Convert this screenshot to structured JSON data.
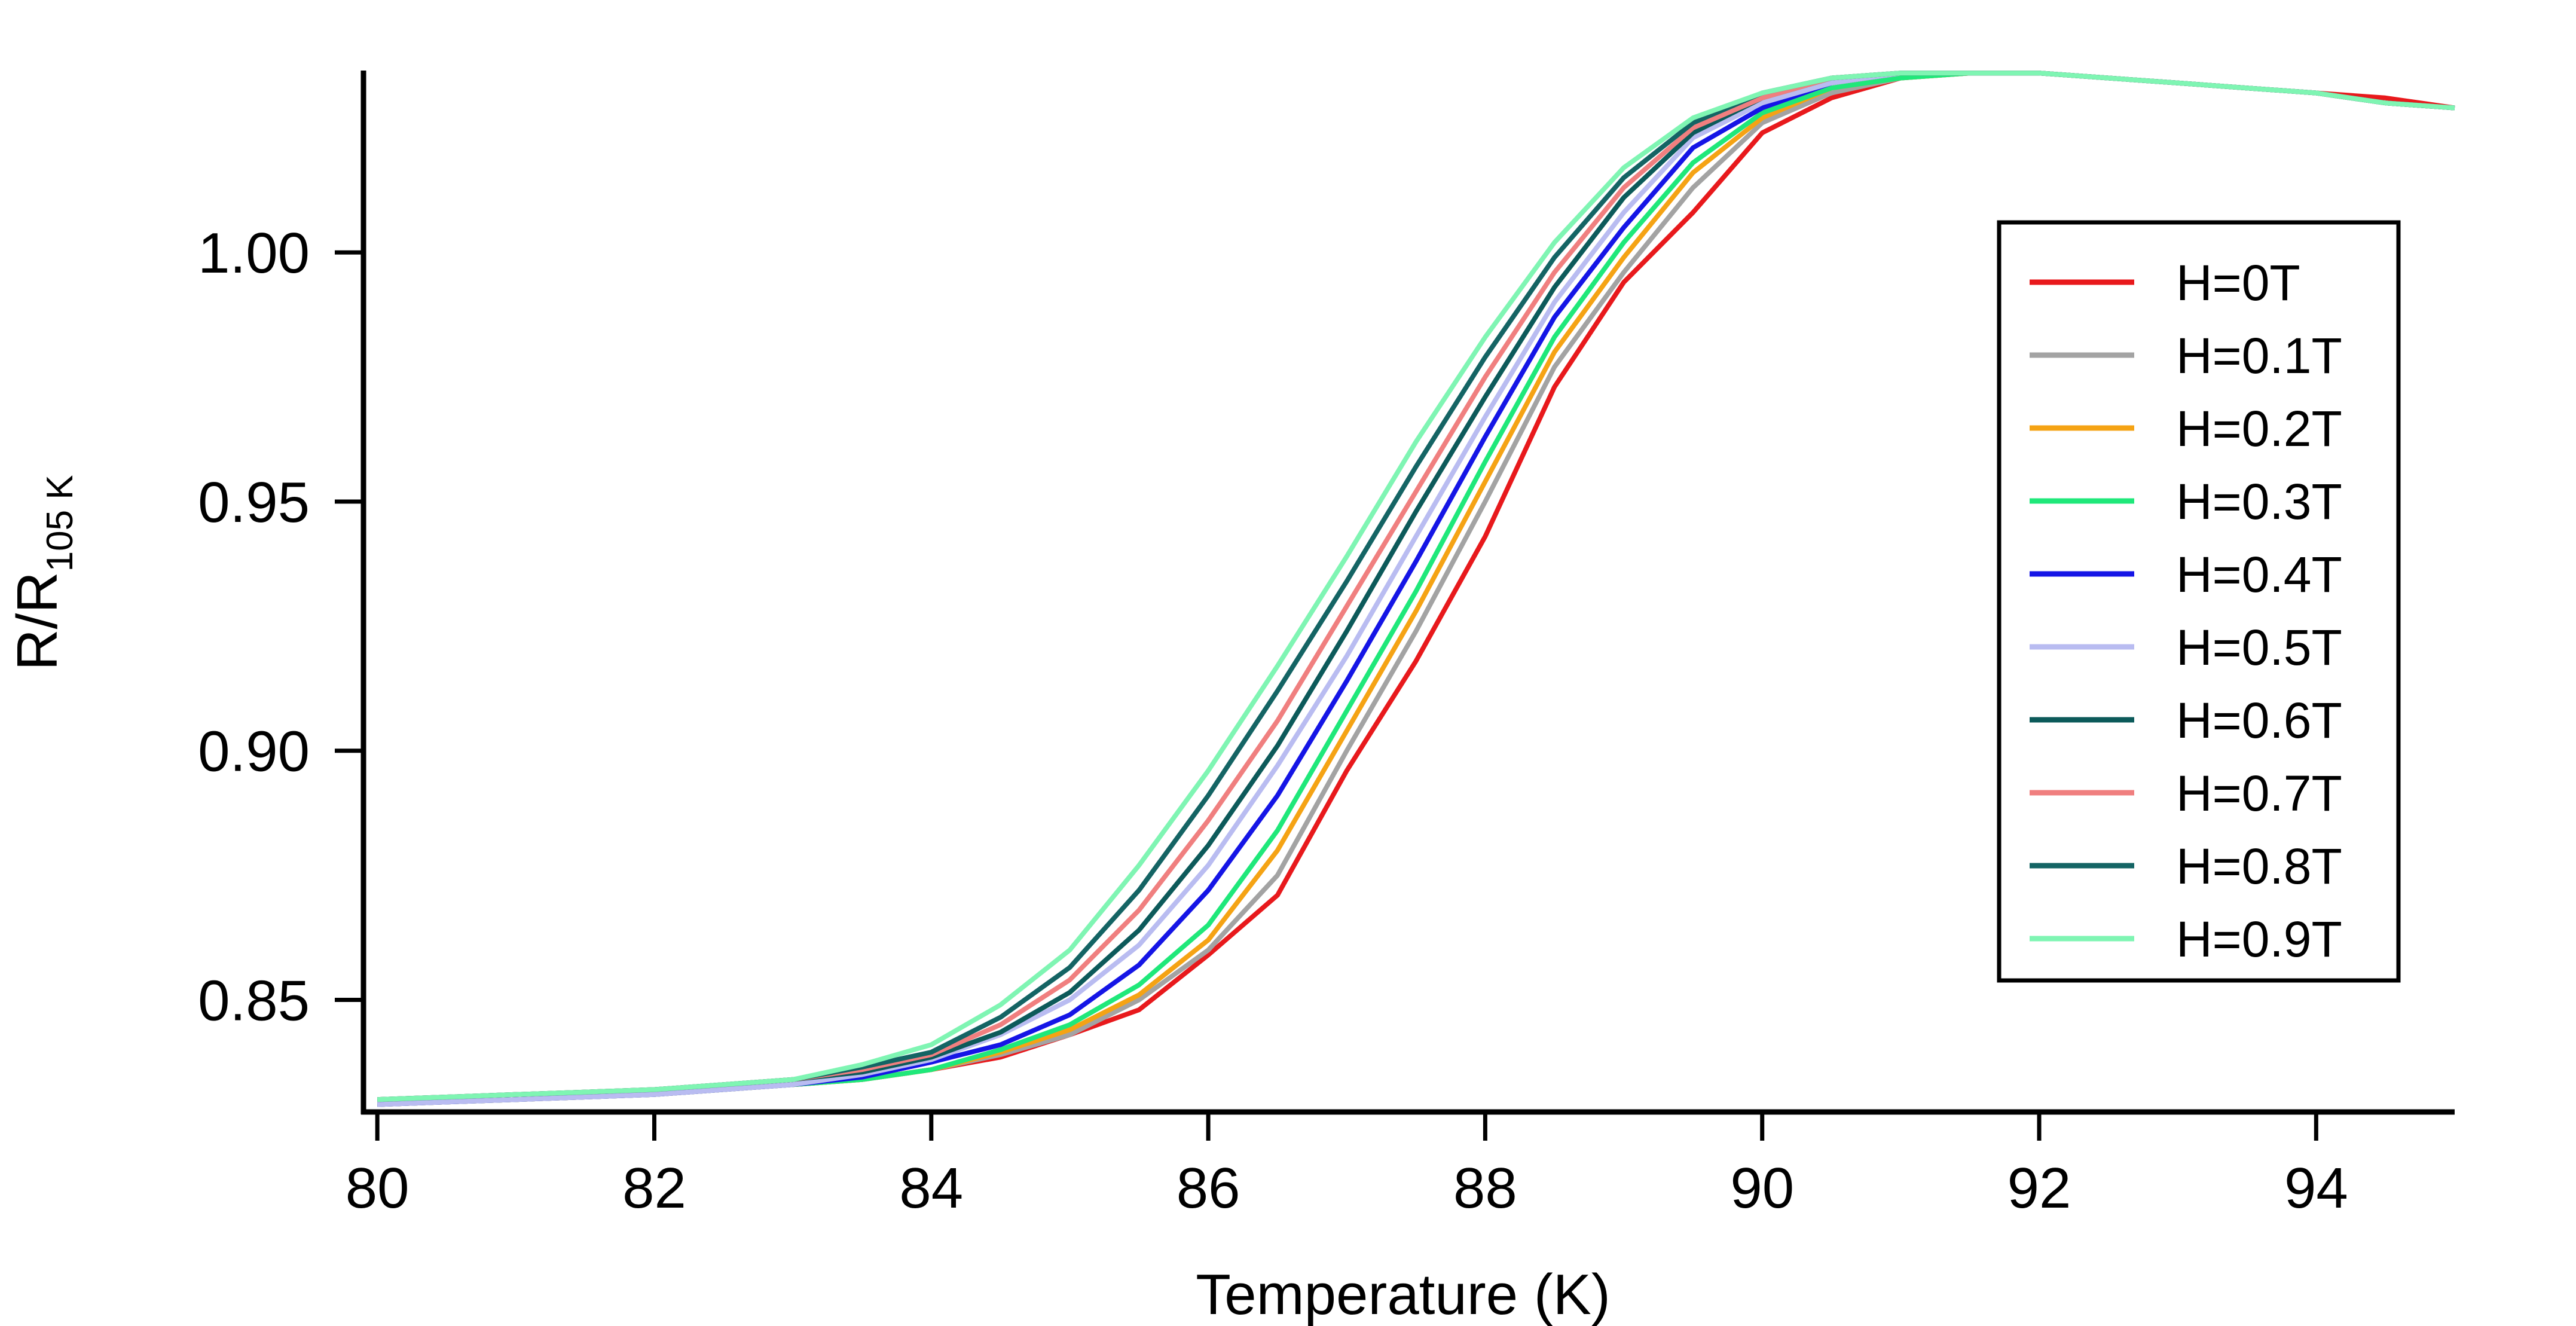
{
  "chart_data": {
    "type": "line",
    "title": "",
    "xlabel": "Temperature (K)",
    "ylabel_main": "R/R",
    "ylabel_sub": "105 K",
    "xlim": [
      79.9,
      95.0
    ],
    "ylim": [
      0.8275,
      1.0365
    ],
    "xticks": [
      80,
      82,
      84,
      86,
      88,
      90,
      92,
      94
    ],
    "xtick_labels": [
      "80",
      "82",
      "84",
      "86",
      "88",
      "90",
      "92",
      "94"
    ],
    "yticks": [
      0.85,
      0.9,
      0.95,
      1.0
    ],
    "ytick_labels": [
      "0.85",
      "0.90",
      "0.95",
      "1.00"
    ],
    "grid": false,
    "legend_position": "right",
    "x": [
      80,
      80.5,
      81,
      81.5,
      82,
      82.5,
      83,
      83.5,
      84,
      84.5,
      85,
      85.5,
      86,
      86.5,
      87,
      87.5,
      88,
      88.5,
      89,
      89.5,
      90,
      90.5,
      91,
      91.5,
      92,
      92.5,
      93,
      93.5,
      94,
      94.5,
      95
    ],
    "series": [
      {
        "name": "H=0T",
        "color": "#e8191c",
        "values": [
          0.829,
          0.8295,
          0.83,
          0.8305,
          0.831,
          0.832,
          0.833,
          0.834,
          0.836,
          0.8385,
          0.843,
          0.848,
          0.859,
          0.871,
          0.896,
          0.918,
          0.943,
          0.973,
          0.994,
          1.008,
          1.024,
          1.031,
          1.035,
          1.036,
          1.036,
          1.035,
          1.034,
          1.033,
          1.032,
          1.031,
          1.029
        ]
      },
      {
        "name": "H=0.1T",
        "color": "#a3a3a3",
        "values": [
          0.829,
          0.8295,
          0.83,
          0.8305,
          0.831,
          0.832,
          0.833,
          0.834,
          0.836,
          0.839,
          0.843,
          0.85,
          0.86,
          0.875,
          0.9,
          0.924,
          0.95,
          0.977,
          0.996,
          1.013,
          1.026,
          1.032,
          1.035,
          1.036,
          1.036,
          1.035,
          1.034,
          1.033,
          1.032,
          1.03,
          1.029
        ]
      },
      {
        "name": "H=0.2T",
        "color": "#f5a314",
        "values": [
          0.829,
          0.8295,
          0.83,
          0.8305,
          0.831,
          0.832,
          0.833,
          0.834,
          0.836,
          0.8395,
          0.844,
          0.851,
          0.862,
          0.88,
          0.904,
          0.928,
          0.954,
          0.98,
          0.999,
          1.016,
          1.027,
          1.033,
          1.035,
          1.036,
          1.036,
          1.035,
          1.034,
          1.033,
          1.032,
          1.03,
          1.029
        ]
      },
      {
        "name": "H=0.3T",
        "color": "#1fe87a",
        "values": [
          0.829,
          0.8295,
          0.83,
          0.8305,
          0.831,
          0.832,
          0.833,
          0.834,
          0.836,
          0.84,
          0.845,
          0.853,
          0.865,
          0.884,
          0.908,
          0.932,
          0.958,
          0.983,
          1.002,
          1.018,
          1.028,
          1.033,
          1.035,
          1.036,
          1.036,
          1.035,
          1.034,
          1.033,
          1.032,
          1.03,
          1.029
        ]
      },
      {
        "name": "H=0.4T",
        "color": "#1515e6",
        "values": [
          0.829,
          0.8295,
          0.83,
          0.8305,
          0.831,
          0.832,
          0.833,
          0.8345,
          0.8375,
          0.841,
          0.847,
          0.857,
          0.872,
          0.891,
          0.914,
          0.938,
          0.963,
          0.987,
          1.005,
          1.021,
          1.029,
          1.034,
          1.036,
          1.036,
          1.036,
          1.035,
          1.034,
          1.033,
          1.032,
          1.03,
          1.029
        ]
      },
      {
        "name": "H=0.5T",
        "color": "#b9bcf1",
        "values": [
          0.829,
          0.8295,
          0.83,
          0.8305,
          0.831,
          0.832,
          0.833,
          0.835,
          0.838,
          0.843,
          0.85,
          0.861,
          0.877,
          0.897,
          0.919,
          0.943,
          0.967,
          0.99,
          1.008,
          1.023,
          1.03,
          1.034,
          1.036,
          1.036,
          1.036,
          1.035,
          1.034,
          1.033,
          1.032,
          1.03,
          1.029
        ]
      },
      {
        "name": "H=0.6T",
        "color": "#0c5a5a",
        "values": [
          0.83,
          0.8305,
          0.831,
          0.8315,
          0.832,
          0.833,
          0.834,
          0.8355,
          0.8385,
          0.8435,
          0.8515,
          0.864,
          0.881,
          0.901,
          0.924,
          0.948,
          0.971,
          0.993,
          1.011,
          1.024,
          1.031,
          1.035,
          1.036,
          1.036,
          1.036,
          1.035,
          1.034,
          1.033,
          1.032,
          1.03,
          1.029
        ]
      },
      {
        "name": "H=0.7T",
        "color": "#f07f7f",
        "values": [
          0.83,
          0.8305,
          0.831,
          0.8315,
          0.832,
          0.833,
          0.834,
          0.836,
          0.839,
          0.845,
          0.854,
          0.868,
          0.886,
          0.906,
          0.929,
          0.952,
          0.975,
          0.996,
          1.013,
          1.025,
          1.031,
          1.035,
          1.036,
          1.036,
          1.036,
          1.035,
          1.034,
          1.033,
          1.032,
          1.03,
          1.029
        ]
      },
      {
        "name": "H=0.8T",
        "color": "#146464",
        "values": [
          0.83,
          0.8305,
          0.831,
          0.8315,
          0.832,
          0.833,
          0.834,
          0.8365,
          0.8395,
          0.8465,
          0.8565,
          0.872,
          0.891,
          0.912,
          0.934,
          0.957,
          0.979,
          0.999,
          1.015,
          1.026,
          1.032,
          1.035,
          1.036,
          1.036,
          1.036,
          1.035,
          1.034,
          1.033,
          1.032,
          1.03,
          1.029
        ]
      },
      {
        "name": "H=0.9T",
        "color": "#7ff5b3",
        "values": [
          0.83,
          0.8305,
          0.831,
          0.8315,
          0.832,
          0.833,
          0.834,
          0.837,
          0.841,
          0.849,
          0.86,
          0.877,
          0.896,
          0.917,
          0.939,
          0.962,
          0.983,
          1.002,
          1.017,
          1.027,
          1.032,
          1.035,
          1.036,
          1.036,
          1.036,
          1.035,
          1.034,
          1.033,
          1.032,
          1.03,
          1.029
        ]
      }
    ]
  }
}
